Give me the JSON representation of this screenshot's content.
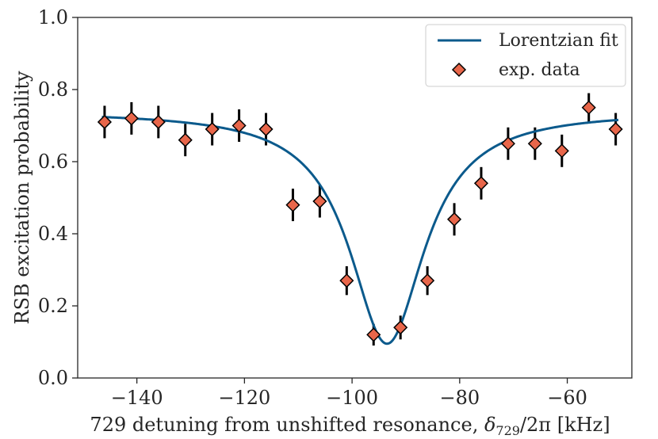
{
  "chart_data": {
    "type": "scatter",
    "xlabel": "729 detuning from unshifted resonance, δ729/2π [kHz]",
    "xlabel_parts": {
      "prefix": "729 detuning from unshifted resonance, ",
      "symbol": "δ",
      "subscript": "729",
      "divisor": "/2π",
      "unit": " [kHz]"
    },
    "ylabel": "RSB excitation probability",
    "xlim": [
      -151,
      -48
    ],
    "ylim": [
      0.0,
      1.0
    ],
    "xticks": [
      -140,
      -120,
      -100,
      -80,
      -60
    ],
    "xtick_labels": [
      "−140",
      "−120",
      "−100",
      "−80",
      "−60"
    ],
    "yticks": [
      0.0,
      0.2,
      0.4,
      0.6,
      0.8,
      1.0
    ],
    "ytick_labels": [
      "0.0",
      "0.2",
      "0.4",
      "0.6",
      "0.8",
      "1.0"
    ],
    "grid": false,
    "legend_position": "top-right",
    "series": [
      {
        "name": "Lorentzian fit",
        "kind": "line",
        "color": "#0b5a8c",
        "model": {
          "baseline": 0.74,
          "depth": 0.645,
          "center": -93.5,
          "hwhm": 8.5
        }
      },
      {
        "name": "exp. data",
        "kind": "scatter",
        "marker": "diamond",
        "color": "#e8664a",
        "errorbar_color": "#000000",
        "x": [
          -146,
          -141,
          -136,
          -131,
          -126,
          -121,
          -116,
          -111,
          -106,
          -101,
          -96,
          -91,
          -86,
          -81,
          -76,
          -71,
          -66,
          -61,
          -56,
          -51
        ],
        "y": [
          0.71,
          0.72,
          0.71,
          0.66,
          0.69,
          0.7,
          0.69,
          0.48,
          0.49,
          0.27,
          0.12,
          0.14,
          0.27,
          0.44,
          0.54,
          0.65,
          0.65,
          0.63,
          0.75,
          0.69
        ],
        "yerr": [
          0.045,
          0.045,
          0.045,
          0.045,
          0.045,
          0.045,
          0.045,
          0.045,
          0.045,
          0.04,
          0.03,
          0.033,
          0.04,
          0.045,
          0.045,
          0.045,
          0.045,
          0.045,
          0.04,
          0.045
        ]
      }
    ]
  }
}
